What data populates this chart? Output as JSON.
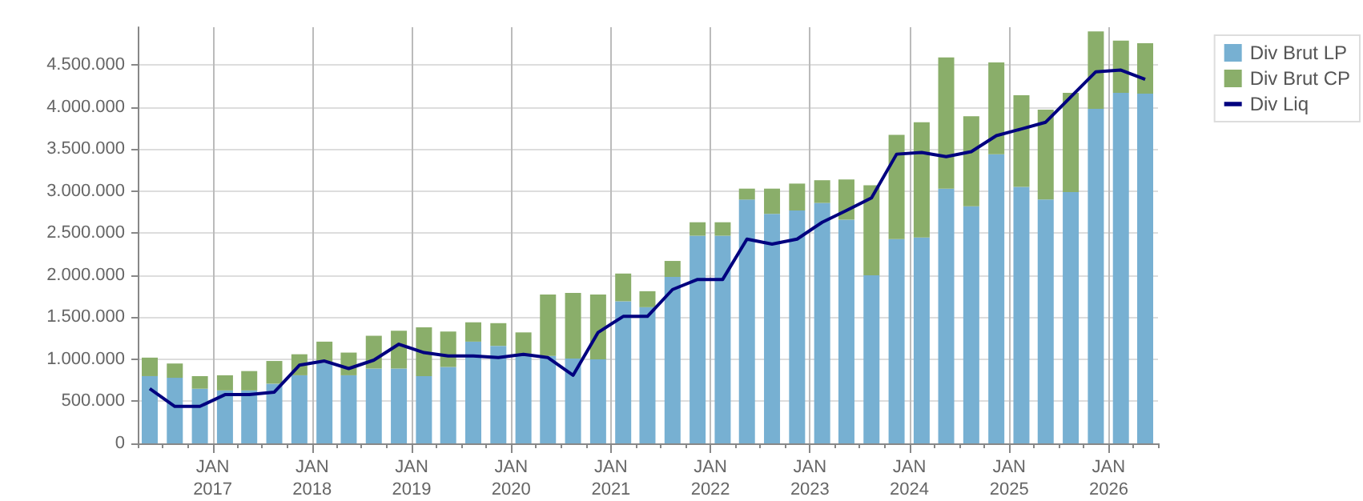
{
  "chart_data": {
    "type": "bar",
    "stacked": true,
    "grid": true,
    "legend": "top right",
    "x": [
      "2016-05-15",
      "2016-08-15",
      "2016-11-15",
      "2017-02-15",
      "2017-05-15",
      "2017-08-15",
      "2017-11-15",
      "2018-02-15",
      "2018-05-15",
      "2018-08-15",
      "2018-11-15",
      "2019-02-15",
      "2019-05-15",
      "2019-08-15",
      "2019-11-15",
      "2020-02-15",
      "2020-05-15",
      "2020-08-15",
      "2020-11-15",
      "2021-02-15",
      "2021-05-15",
      "2021-08-15",
      "2021-11-15",
      "2022-02-15",
      "2022-05-15",
      "2022-08-15",
      "2022-11-15",
      "2023-02-15",
      "2023-05-15",
      "2023-08-15",
      "2023-11-15",
      "2024-02-15",
      "2024-05-15",
      "2024-08-15",
      "2024-11-15",
      "2025-02-15",
      "2025-05-15",
      "2025-08-15",
      "2025-11-15",
      "2026-02-15",
      "2026-05-15"
    ],
    "series": [
      {
        "name": "Div Brut LP",
        "color": "#77b0d2",
        "values": [
          800000,
          780000,
          650000,
          630000,
          630000,
          710000,
          810000,
          960000,
          810000,
          890000,
          890000,
          800000,
          910000,
          1210000,
          1160000,
          1040000,
          1040000,
          1010000,
          1000000,
          1690000,
          1620000,
          1980000,
          2470000,
          2470000,
          2900000,
          2730000,
          2770000,
          2860000,
          2660000,
          2000000,
          2430000,
          2450000,
          3030000,
          2820000,
          3440000,
          3050000,
          2900000,
          2990000,
          3980000,
          4170000,
          4160000
        ]
      },
      {
        "name": "Div Brut CP",
        "color": "#8aae6a",
        "values": [
          220000,
          170000,
          150000,
          180000,
          230000,
          270000,
          250000,
          250000,
          270000,
          390000,
          450000,
          580000,
          420000,
          230000,
          270000,
          280000,
          730000,
          780000,
          770000,
          330000,
          190000,
          190000,
          160000,
          160000,
          130000,
          300000,
          320000,
          270000,
          480000,
          1070000,
          1240000,
          1370000,
          1560000,
          1070000,
          1090000,
          1090000,
          1070000,
          1180000,
          920000,
          620000,
          600000
        ]
      },
      {
        "name": "Div Liq",
        "type": "line",
        "color": "#00007f",
        "values": [
          650000,
          440000,
          440000,
          580000,
          580000,
          610000,
          930000,
          980000,
          890000,
          990000,
          1180000,
          1080000,
          1040000,
          1040000,
          1020000,
          1060000,
          1020000,
          810000,
          1320000,
          1510000,
          1510000,
          1830000,
          1950000,
          1950000,
          2430000,
          2370000,
          2430000,
          2630000,
          2770000,
          2920000,
          3440000,
          3460000,
          3410000,
          3470000,
          3660000,
          3740000,
          3820000,
          4120000,
          4420000,
          4440000,
          4330000
        ]
      }
    ],
    "xlim": [
      "2016-04-01",
      "2026-07-01"
    ],
    "xticks": [
      {
        "value": "2016-04-01",
        "label": null
      },
      {
        "value": "2016-07-01",
        "label": null
      },
      {
        "value": "2016-10-01",
        "label": null
      },
      {
        "value": "2017-01-01",
        "label": "JAN\n2017"
      },
      {
        "value": "2017-04-01",
        "label": null
      },
      {
        "value": "2017-07-01",
        "label": null
      },
      {
        "value": "2017-10-01",
        "label": null
      },
      {
        "value": "2018-01-01",
        "label": "JAN\n2018"
      },
      {
        "value": "2018-04-01",
        "label": null
      },
      {
        "value": "2018-07-01",
        "label": null
      },
      {
        "value": "2018-10-01",
        "label": null
      },
      {
        "value": "2019-01-01",
        "label": "JAN\n2019"
      },
      {
        "value": "2019-04-01",
        "label": null
      },
      {
        "value": "2019-07-01",
        "label": null
      },
      {
        "value": "2019-10-01",
        "label": null
      },
      {
        "value": "2020-01-01",
        "label": "JAN\n2020"
      },
      {
        "value": "2020-04-01",
        "label": null
      },
      {
        "value": "2020-07-01",
        "label": null
      },
      {
        "value": "2020-10-01",
        "label": null
      },
      {
        "value": "2021-01-01",
        "label": "JAN\n2021"
      },
      {
        "value": "2021-04-01",
        "label": null
      },
      {
        "value": "2021-07-01",
        "label": null
      },
      {
        "value": "2021-10-01",
        "label": null
      },
      {
        "value": "2022-01-01",
        "label": "JAN\n2022"
      },
      {
        "value": "2022-04-01",
        "label": null
      },
      {
        "value": "2022-07-01",
        "label": null
      },
      {
        "value": "2022-10-01",
        "label": null
      },
      {
        "value": "2023-01-01",
        "label": "JAN\n2023"
      },
      {
        "value": "2023-04-01",
        "label": null
      },
      {
        "value": "2023-07-01",
        "label": null
      },
      {
        "value": "2023-10-01",
        "label": null
      },
      {
        "value": "2024-01-01",
        "label": "JAN\n2024"
      },
      {
        "value": "2024-04-01",
        "label": null
      },
      {
        "value": "2024-07-01",
        "label": null
      },
      {
        "value": "2024-10-01",
        "label": null
      },
      {
        "value": "2025-01-01",
        "label": "JAN\n2025"
      },
      {
        "value": "2025-04-01",
        "label": null
      },
      {
        "value": "2025-07-01",
        "label": null
      },
      {
        "value": "2025-10-01",
        "label": null
      },
      {
        "value": "2026-01-01",
        "label": "JAN\n2026"
      },
      {
        "value": "2026-04-01",
        "label": null
      },
      {
        "value": "2026-07-01",
        "label": null
      }
    ],
    "ylim": [
      0,
      4950000
    ],
    "yticks": [
      0,
      {
        "value": 500000,
        "label": "500.000"
      },
      {
        "value": 1000000,
        "label": "1.000.000"
      },
      {
        "value": 1500000,
        "label": "1.500.000"
      },
      {
        "value": 2000000,
        "label": "2.000.000"
      },
      {
        "value": 2500000,
        "label": "2.500.000"
      },
      {
        "value": 3000000,
        "label": "3.000.000"
      },
      {
        "value": 3500000,
        "label": "3.500.000"
      },
      {
        "value": 4000000,
        "label": "4.000.000"
      },
      {
        "value": 4500000,
        "label": "4.500.000"
      }
    ]
  }
}
